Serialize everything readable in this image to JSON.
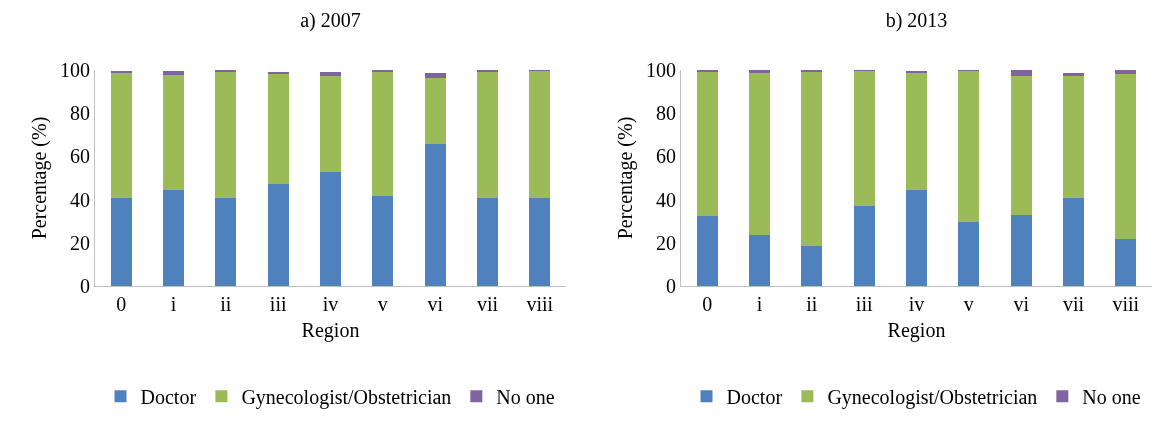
{
  "chart_data": [
    {
      "type": "bar",
      "title": "a) 2007",
      "xlabel": "Region",
      "ylabel": "Percentage (%)",
      "categories": [
        "0",
        "i",
        "ii",
        "iii",
        "iv",
        "v",
        "vi",
        "vii",
        "viii"
      ],
      "stacked": true,
      "ylim": [
        0,
        100
      ],
      "yticks": [
        0,
        20,
        40,
        60,
        80,
        100
      ],
      "grid": false,
      "legend": "bottom",
      "series": [
        {
          "name": "Doctor",
          "color": "#4f81bd",
          "values": [
            40.6,
            44.3,
            40.8,
            47.2,
            53,
            41.7,
            65.6,
            40.6,
            40.6
          ]
        },
        {
          "name": "Gynecologist/Obstetrician",
          "color": "#9bbb59",
          "values": [
            58.4,
            53.6,
            58.7,
            51.4,
            44.3,
            57.5,
            30.9,
            58.3,
            59
          ]
        },
        {
          "name": "No one",
          "color": "#8064a2",
          "values": [
            0.5,
            1.6,
            0.3,
            0.4,
            1.7,
            0.6,
            2.1,
            1.1,
            0.4
          ]
        }
      ]
    },
    {
      "type": "bar",
      "title": "b) 2013",
      "xlabel": "Region",
      "ylabel": "Percentage (%)",
      "categories": [
        "0",
        "i",
        "ii",
        "iii",
        "iv",
        "v",
        "vi",
        "vii",
        "viii"
      ],
      "stacked": true,
      "ylim": [
        0,
        100
      ],
      "yticks": [
        0,
        20,
        40,
        60,
        80,
        100
      ],
      "grid": false,
      "legend": "bottom",
      "series": [
        {
          "name": "Doctor",
          "color": "#4f81bd",
          "values": [
            32.5,
            23.8,
            18.5,
            36.9,
            44.4,
            29.7,
            33,
            40.6,
            21.7
          ]
        },
        {
          "name": "Gynecologist/Obstetrician",
          "color": "#9bbb59",
          "values": [
            66.6,
            75,
            80.6,
            62.9,
            54.4,
            70.1,
            64.4,
            56.4,
            76.6
          ]
        },
        {
          "name": "No one",
          "color": "#8064a2",
          "values": [
            0.9,
            1.2,
            0.9,
            0.2,
            0.9,
            0.2,
            2.6,
            1.6,
            1.7
          ]
        }
      ]
    }
  ]
}
